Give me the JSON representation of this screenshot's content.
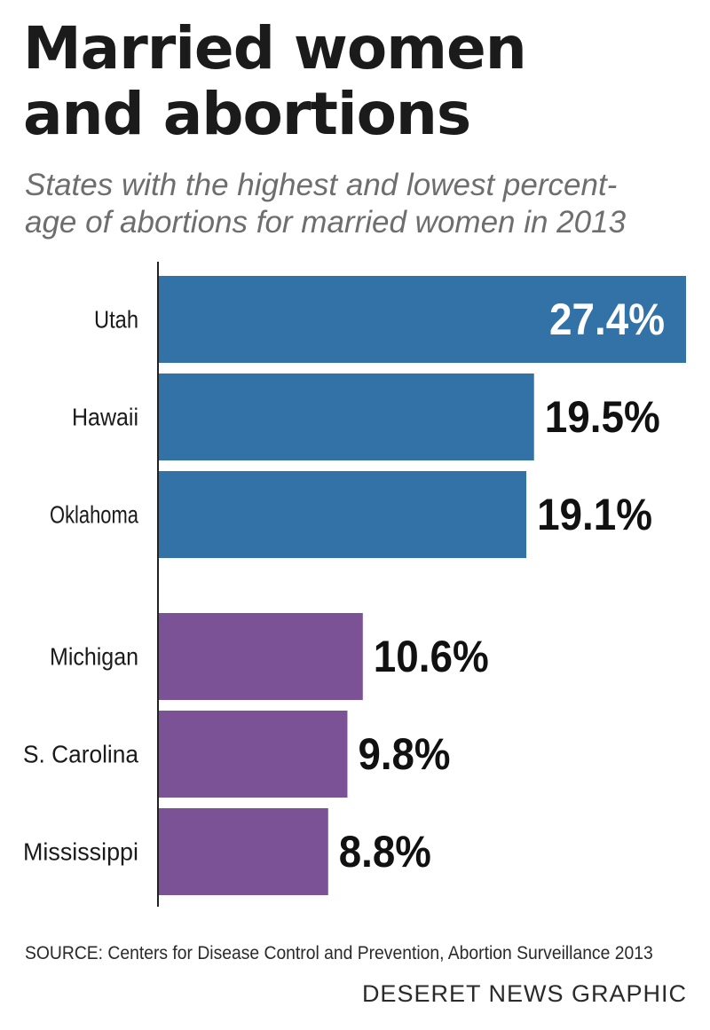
{
  "header": {
    "title_line1": "Married women",
    "title_line2": "and abortions",
    "subtitle_line1": "States with the highest and lowest percent-",
    "subtitle_line2": "age of abortions for married women in 2013"
  },
  "chart_data": {
    "type": "bar",
    "orientation": "horizontal",
    "title": "Married women and abortions",
    "subtitle": "States with the highest and lowest percentage of abortions for married women in 2013",
    "categories": [
      "Utah",
      "Hawaii",
      "Oklahoma",
      "Michigan",
      "S. Carolina",
      "Mississippi"
    ],
    "values": [
      27.4,
      19.5,
      19.1,
      10.6,
      9.8,
      8.8
    ],
    "value_labels": [
      "27.4%",
      "19.5%",
      "19.1%",
      "10.6%",
      "9.8%",
      "8.8%"
    ],
    "groups": [
      "highest",
      "highest",
      "highest",
      "lowest",
      "lowest",
      "lowest"
    ],
    "colors": {
      "highest": "#3272a6",
      "lowest": "#7c5296",
      "label_on_bar": "#ffffff",
      "label_default": "#111111",
      "axis": "#222222"
    },
    "xlim": [
      0,
      27.4
    ],
    "grid": false,
    "legend": "none"
  },
  "footer": {
    "source": "SOURCE: Centers for Disease Control and Prevention, Abortion Surveillance 2013",
    "credit": "DESERET NEWS GRAPHIC"
  }
}
